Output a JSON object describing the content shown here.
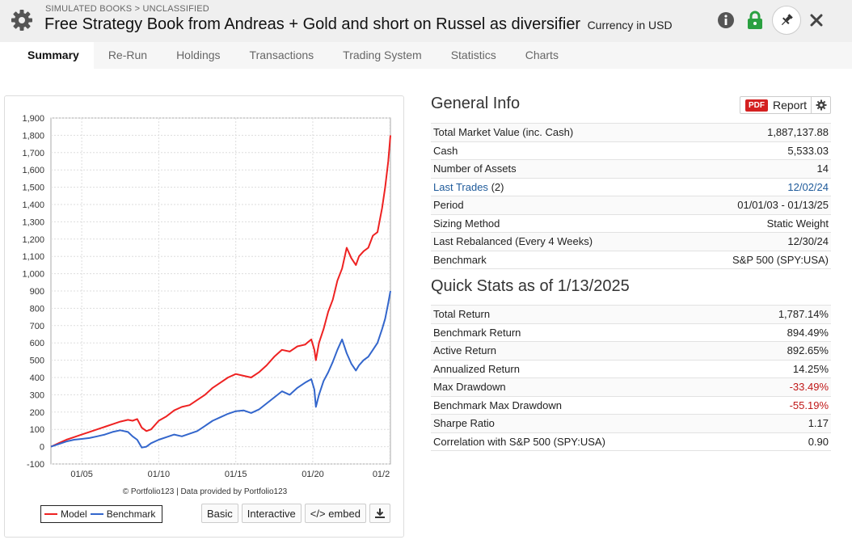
{
  "header": {
    "breadcrumb": "SIMULATED BOOKS > UNCLASSIFIED",
    "title": "Free Strategy Book from Andreas + Gold and short on Russel as diversifier",
    "currency": "Currency in USD"
  },
  "tabs": [
    "Summary",
    "Re-Run",
    "Holdings",
    "Transactions",
    "Trading System",
    "Statistics",
    "Charts"
  ],
  "chart_panel": {
    "credit": "© Portfolio123 | Data provided by Portfolio123",
    "buttons": {
      "basic": "Basic",
      "interactive": "Interactive",
      "embed": "</> embed"
    }
  },
  "chart_data": {
    "type": "line",
    "ylim": [
      -100,
      1900
    ],
    "yticks": [
      "1,900",
      "1,800",
      "1,700",
      "1,600",
      "1,500",
      "1,400",
      "1,300",
      "1,200",
      "1,100",
      "1,000",
      "900",
      "800",
      "700",
      "600",
      "500",
      "400",
      "300",
      "200",
      "100",
      "0",
      "-100"
    ],
    "ytick_values": [
      1900,
      1800,
      1700,
      1600,
      1500,
      1400,
      1300,
      1200,
      1100,
      1000,
      900,
      800,
      700,
      600,
      500,
      400,
      300,
      200,
      100,
      0,
      -100
    ],
    "xlim": [
      2003.0,
      2025.04
    ],
    "xticks": [
      "01/05",
      "01/10",
      "01/15",
      "01/20",
      "01/2"
    ],
    "xtick_values": [
      2005,
      2010,
      2015,
      2020,
      2025
    ],
    "grid": true,
    "legend_position": "bottom-left",
    "series": [
      {
        "name": "Model",
        "color": "#ee2222",
        "x": [
          2003.0,
          2003.5,
          2004.0,
          2004.5,
          2005.0,
          2005.5,
          2006.0,
          2006.5,
          2007.0,
          2007.5,
          2008.0,
          2008.3,
          2008.6,
          2008.9,
          2009.2,
          2009.5,
          2010.0,
          2010.5,
          2011.0,
          2011.5,
          2012.0,
          2012.5,
          2013.0,
          2013.5,
          2014.0,
          2014.5,
          2015.0,
          2015.5,
          2016.0,
          2016.5,
          2017.0,
          2017.5,
          2018.0,
          2018.5,
          2019.0,
          2019.5,
          2019.9,
          2020.1,
          2020.2,
          2020.4,
          2020.7,
          2021.0,
          2021.3,
          2021.6,
          2021.9,
          2022.2,
          2022.5,
          2022.8,
          2023.0,
          2023.3,
          2023.6,
          2023.9,
          2024.2,
          2024.5,
          2024.7,
          2024.9,
          2025.04
        ],
        "y": [
          0,
          20,
          40,
          55,
          70,
          85,
          100,
          115,
          130,
          145,
          155,
          150,
          160,
          110,
          90,
          100,
          150,
          175,
          210,
          230,
          240,
          270,
          300,
          340,
          370,
          400,
          420,
          410,
          400,
          430,
          470,
          520,
          560,
          550,
          580,
          590,
          620,
          560,
          500,
          600,
          680,
          780,
          850,
          960,
          1030,
          1150,
          1090,
          1050,
          1100,
          1130,
          1150,
          1220,
          1240,
          1380,
          1500,
          1650,
          1800
        ]
      },
      {
        "name": "Benchmark",
        "color": "#3366cc",
        "x": [
          2003.0,
          2003.5,
          2004.0,
          2004.5,
          2005.0,
          2005.5,
          2006.0,
          2006.5,
          2007.0,
          2007.5,
          2008.0,
          2008.3,
          2008.6,
          2008.9,
          2009.2,
          2009.5,
          2010.0,
          2010.5,
          2011.0,
          2011.5,
          2012.0,
          2012.5,
          2013.0,
          2013.5,
          2014.0,
          2014.5,
          2015.0,
          2015.5,
          2016.0,
          2016.5,
          2017.0,
          2017.5,
          2018.0,
          2018.5,
          2019.0,
          2019.5,
          2019.9,
          2020.1,
          2020.2,
          2020.4,
          2020.7,
          2021.0,
          2021.3,
          2021.6,
          2021.9,
          2022.2,
          2022.5,
          2022.8,
          2023.0,
          2023.3,
          2023.6,
          2023.9,
          2024.2,
          2024.5,
          2024.7,
          2024.9,
          2025.04
        ],
        "y": [
          0,
          15,
          30,
          40,
          45,
          50,
          60,
          70,
          85,
          95,
          85,
          60,
          40,
          -5,
          0,
          20,
          40,
          55,
          70,
          60,
          75,
          90,
          120,
          150,
          170,
          190,
          205,
          210,
          195,
          215,
          250,
          285,
          320,
          300,
          340,
          370,
          390,
          330,
          230,
          300,
          380,
          430,
          490,
          560,
          620,
          540,
          480,
          440,
          470,
          500,
          520,
          560,
          600,
          680,
          740,
          830,
          900
        ]
      }
    ]
  },
  "general_info": {
    "title": "General Info",
    "report_pdf_badge": "PDF",
    "report_label": "Report",
    "rows": [
      {
        "label": "Total Market Value (inc. Cash)",
        "value": "1,887,137.88"
      },
      {
        "label": "Cash",
        "value": "5,533.03"
      },
      {
        "label": "Number of Assets",
        "value": "14"
      },
      {
        "label": "Last Trades",
        "label_suffix": "(2)",
        "value": "12/02/24"
      },
      {
        "label": "Period",
        "value": "01/01/03 - 01/13/25"
      },
      {
        "label": "Sizing Method",
        "value": "Static Weight"
      },
      {
        "label": "Last Rebalanced (Every 4 Weeks)",
        "value": "12/30/24"
      },
      {
        "label": "Benchmark",
        "value": "S&P 500 (SPY:USA)"
      }
    ]
  },
  "quick_stats": {
    "title": "Quick Stats as of 1/13/2025",
    "rows": [
      {
        "label": "Total Return",
        "value": "1,787.14%"
      },
      {
        "label": "Benchmark Return",
        "value": "894.49%"
      },
      {
        "label": "Active Return",
        "value": "892.65%"
      },
      {
        "label": "Annualized Return",
        "value": "14.25%"
      },
      {
        "label": "Max Drawdown",
        "value": "-33.49%"
      },
      {
        "label": "Benchmark Max Drawdown",
        "value": "-55.19%"
      },
      {
        "label": "Sharpe Ratio",
        "value": "1.17"
      },
      {
        "label": "Correlation with S&P 500 (SPY:USA)",
        "value": "0.90"
      }
    ]
  }
}
